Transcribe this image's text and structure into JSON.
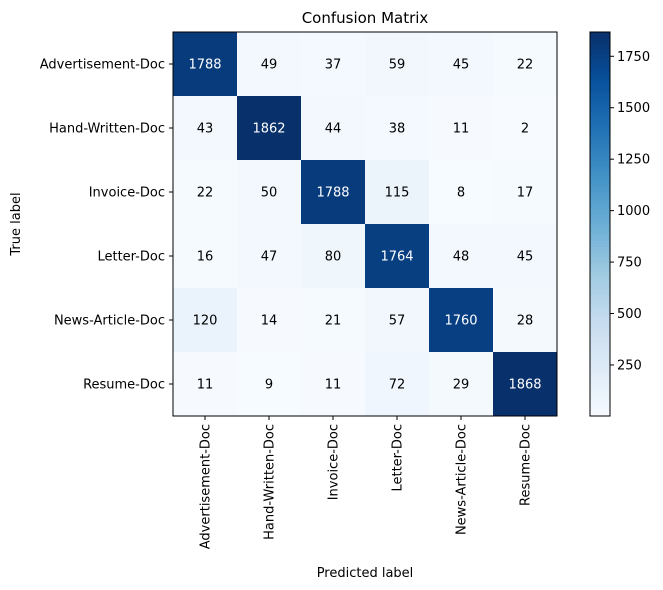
{
  "chart_data": {
    "type": "heatmap",
    "title": "Confusion Matrix",
    "xlabel": "Predicted label",
    "ylabel": "True label",
    "x_categories": [
      "Advertisement-Doc",
      "Hand-Written-Doc",
      "Invoice-Doc",
      "Letter-Doc",
      "News-Article-Doc",
      "Resume-Doc"
    ],
    "y_categories": [
      "Advertisement-Doc",
      "Hand-Written-Doc",
      "Invoice-Doc",
      "Letter-Doc",
      "News-Article-Doc",
      "Resume-Doc"
    ],
    "values": [
      [
        1788,
        49,
        37,
        59,
        45,
        22
      ],
      [
        43,
        1862,
        44,
        38,
        11,
        2
      ],
      [
        22,
        50,
        1788,
        115,
        8,
        17
      ],
      [
        16,
        47,
        80,
        1764,
        48,
        45
      ],
      [
        120,
        14,
        21,
        57,
        1760,
        28
      ],
      [
        11,
        9,
        11,
        72,
        29,
        1868
      ]
    ],
    "colormap": "Blues",
    "colorbar": {
      "range": [
        2,
        1868
      ],
      "ticks": [
        250,
        500,
        750,
        1000,
        1250,
        1500,
        1750
      ]
    },
    "grid": false
  }
}
